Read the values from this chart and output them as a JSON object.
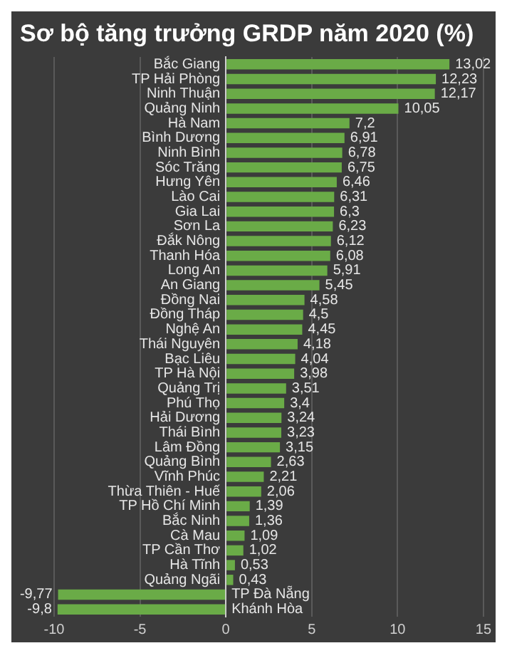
{
  "chart_data": {
    "type": "bar",
    "orientation": "horizontal",
    "title": "Sơ bộ tăng trưởng GRDP năm 2020 (%)",
    "categories": [
      "Bắc Giang",
      "TP Hải Phòng",
      "Ninh Thuận",
      "Quảng Ninh",
      "Hà Nam",
      "Bình Dương",
      "Ninh Bình",
      "Sóc Trăng",
      "Hưng Yên",
      "Lào Cai",
      "Gia Lai",
      "Sơn La",
      "Đắk Nông",
      "Thanh Hóa",
      "Long An",
      "An Giang",
      "Đồng Nai",
      "Đồng Tháp",
      "Nghệ An",
      "Thái Nguyên",
      "Bạc Liêu",
      "TP Hà Nội",
      "Quảng Trị",
      "Phú Thọ",
      "Hải Dương",
      "Thái Bình",
      "Lâm Đồng",
      "Quảng Bình",
      "Vĩnh Phúc",
      "Thừa Thiên - Huế",
      "TP Hồ Chí Minh",
      "Bắc Ninh",
      "Cà Mau",
      "TP Cần Thơ",
      "Hà Tĩnh",
      "Quảng Ngãi",
      "TP Đà Nẵng",
      "Khánh Hòa"
    ],
    "values": [
      13.02,
      12.23,
      12.17,
      10.05,
      7.2,
      6.91,
      6.78,
      6.75,
      6.46,
      6.31,
      6.3,
      6.23,
      6.12,
      6.08,
      5.91,
      5.45,
      4.58,
      4.5,
      4.45,
      4.18,
      4.04,
      3.98,
      3.51,
      3.4,
      3.24,
      3.23,
      3.15,
      2.63,
      2.21,
      2.06,
      1.39,
      1.36,
      1.09,
      1.02,
      0.53,
      0.43,
      -9.77,
      -9.8
    ],
    "value_labels": [
      "13,02",
      "12,23",
      "12,17",
      "10,05",
      "7,2",
      "6,91",
      "6,78",
      "6,75",
      "6,46",
      "6,31",
      "6,3",
      "6,23",
      "6,12",
      "6,08",
      "5,91",
      "5,45",
      "4,58",
      "4,5",
      "4,45",
      "4,18",
      "4,04",
      "3,98",
      "3,51",
      "3,4",
      "3,24",
      "3,23",
      "3,15",
      "2,63",
      "2,21",
      "2,06",
      "1,39",
      "1,36",
      "1,09",
      "1,02",
      "0,53",
      "0,43",
      "-9,77",
      "-9,8"
    ],
    "color": "#6aab47",
    "xlim": [
      -10,
      15
    ],
    "xticks": [
      -10,
      -5,
      0,
      5,
      10,
      15
    ],
    "grid": "x"
  }
}
